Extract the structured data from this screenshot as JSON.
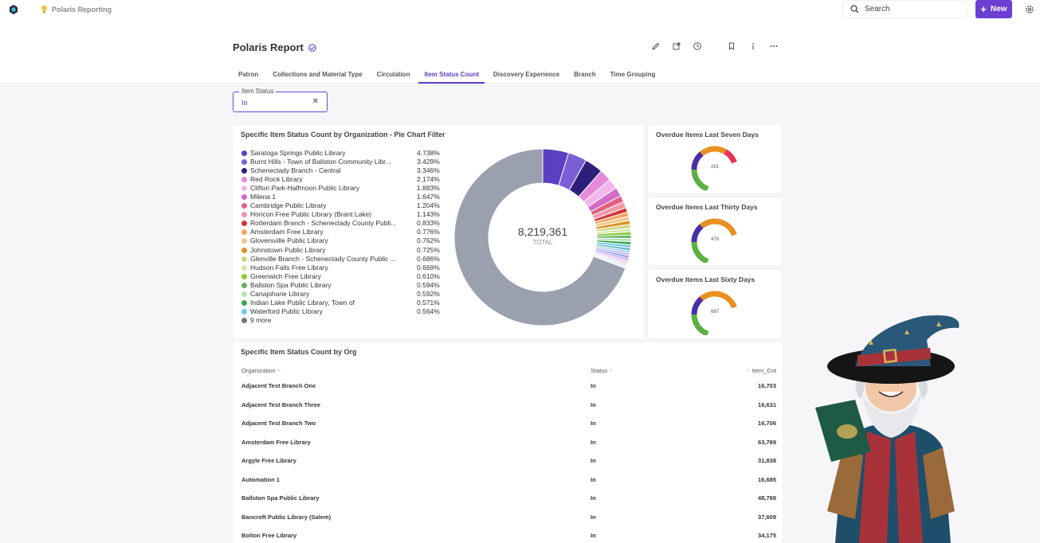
{
  "app": {
    "breadcrumb": "Polaris Reporting"
  },
  "search": {
    "label": "Search"
  },
  "new_button": {
    "label": "New"
  },
  "report": {
    "title": "Polaris Report"
  },
  "tabs": [
    {
      "label": "Patron"
    },
    {
      "label": "Collections and Material Type"
    },
    {
      "label": "Circulation"
    },
    {
      "label": "Item Status Count",
      "active": true
    },
    {
      "label": "Discovery Experience"
    },
    {
      "label": "Branch"
    },
    {
      "label": "Time Grouping"
    }
  ],
  "filter": {
    "label": "Item Status",
    "value": "In"
  },
  "pie_card": {
    "title": "Specific Item Status Count by Organization - Pie Chart Filter",
    "total": "8,219,361",
    "total_label": "TOTAL"
  },
  "chart_data": {
    "type": "pie",
    "legend": [
      {
        "name": "Saratoga Springs Public Library",
        "value": "4.738%",
        "color": "#5b3fc4"
      },
      {
        "name": "Burnt Hills - Town of Ballston Community Libr...",
        "value": "3.429%",
        "color": "#7b5fd8"
      },
      {
        "name": "Schenectady Branch - Central",
        "value": "3.346%",
        "color": "#2e1f7a"
      },
      {
        "name": "Red Rock Library",
        "value": "2.174%",
        "color": "#e48ad8"
      },
      {
        "name": "Clifton Park-Halfmoon Public Library",
        "value": "1.883%",
        "color": "#f2b6ec"
      },
      {
        "name": "Milena 1",
        "value": "1.647%",
        "color": "#d46bc4"
      },
      {
        "name": "Cambridge Public Library",
        "value": "1.204%",
        "color": "#e06080"
      },
      {
        "name": "Horicon Free Public Library (Brant Lake)",
        "value": "1.143%",
        "color": "#f29aa8"
      },
      {
        "name": "Rotterdam Branch - Schenectady County Publi...",
        "value": "0.833%",
        "color": "#d6363a"
      },
      {
        "name": "Amsterdam Free Library",
        "value": "0.776%",
        "color": "#f0a860"
      },
      {
        "name": "Gloversville Public Library",
        "value": "0.762%",
        "color": "#f5c88a"
      },
      {
        "name": "Johnstown Public Library",
        "value": "0.725%",
        "color": "#e0901e"
      },
      {
        "name": "Glenville Branch - Schenectady County Public ...",
        "value": "0.686%",
        "color": "#c8d888"
      },
      {
        "name": "Hudson Falls Free Library",
        "value": "0.669%",
        "color": "#d8e8b0"
      },
      {
        "name": "Greenwich Free Library",
        "value": "0.610%",
        "color": "#8ac838"
      },
      {
        "name": "Ballston Spa Public Library",
        "value": "0.594%",
        "color": "#60b060"
      },
      {
        "name": "Canajoharie Library",
        "value": "0.592%",
        "color": "#b8e0b8"
      },
      {
        "name": "Indian Lake Public Library, Town of",
        "value": "0.571%",
        "color": "#38a848"
      },
      {
        "name": "Waterford Public Library",
        "value": "0.564%",
        "color": "#78c8e8"
      },
      {
        "name": "9 more",
        "value": "",
        "color": "#777777"
      }
    ],
    "slices": [
      4.738,
      3.429,
      3.346,
      2.174,
      1.883,
      1.647,
      1.204,
      1.143,
      0.833,
      0.776,
      0.762,
      0.725,
      0.686,
      0.669,
      0.61,
      0.594,
      0.592,
      0.571,
      0.564
    ],
    "remainder_color": "#9ba0ae",
    "extra_colors": [
      "#58b8c8",
      "#a0d0e8",
      "#b0b8f0",
      "#8890e0",
      "#c0a0f0",
      "#e8c0f0",
      "#f0d0e0",
      "#d0e8f0",
      "#e0e8f8"
    ],
    "extra_slices": [
      0.5,
      0.48,
      0.46,
      0.44,
      0.42,
      0.4,
      0.38,
      0.36,
      0.34
    ]
  },
  "gauges": [
    {
      "title": "Overdue Items Last Seven Days",
      "value": "291"
    },
    {
      "title": "Overdue Items Last Thirty Days",
      "value": "479"
    },
    {
      "title": "Overdue Items Last Sixty Days",
      "value": "687"
    }
  ],
  "table": {
    "title": "Specific Item Status Count by Org",
    "columns": [
      "Organization",
      "Status",
      "Item_Cnt"
    ],
    "rows": [
      [
        "Adjacent Test Branch One",
        "In",
        "16,703"
      ],
      [
        "Adjacent Test Branch Three",
        "In",
        "16,631"
      ],
      [
        "Adjacent Test Branch Two",
        "In",
        "16,706"
      ],
      [
        "Amsterdam Free Library",
        "In",
        "63,789"
      ],
      [
        "Argyle Free Library",
        "In",
        "31,838"
      ],
      [
        "Automation 1",
        "In",
        "16,685"
      ],
      [
        "Ballston Spa Public Library",
        "In",
        "48,788"
      ],
      [
        "Bancroft Public Library (Salem)",
        "In",
        "37,609"
      ],
      [
        "Bolton Free Library",
        "In",
        "34,175"
      ]
    ]
  }
}
